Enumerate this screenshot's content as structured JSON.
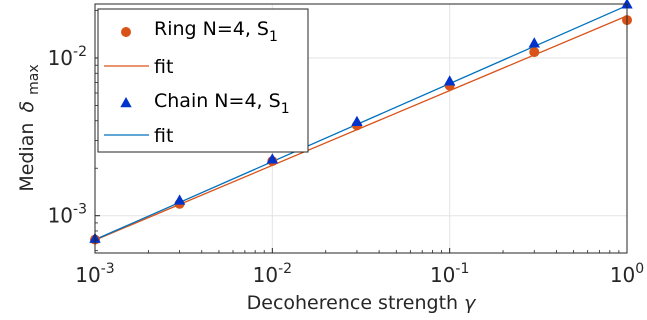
{
  "chart_data": {
    "type": "scatter",
    "xscale": "log",
    "yscale": "log",
    "xlim": [
      0.001,
      1
    ],
    "ylim": [
      0.00058,
      0.022
    ],
    "grid": true,
    "legend_position": "top-left",
    "xlabel": "Decoherence strength",
    "xlabel_symbol": "γ",
    "ylabel": "Median",
    "ylabel_symbol": "δ",
    "ylabel_subscript": "max",
    "x_ticks": [
      {
        "value": 0.001,
        "base": "10",
        "exp": "-3"
      },
      {
        "value": 0.01,
        "base": "10",
        "exp": "-2"
      },
      {
        "value": 0.1,
        "base": "10",
        "exp": "-1"
      },
      {
        "value": 1,
        "base": "10",
        "exp": "0"
      }
    ],
    "y_ticks": [
      {
        "value": 0.001,
        "base": "10",
        "exp": "-3"
      },
      {
        "value": 0.01,
        "base": "10",
        "exp": "-2"
      }
    ],
    "series": [
      {
        "name": "Ring N=4, S",
        "name_subscript": "1",
        "marker": "circle",
        "color": "#D95319",
        "x": [
          0.001,
          0.003,
          0.01,
          0.03,
          0.1,
          0.3,
          1
        ],
        "y": [
          0.000705,
          0.00119,
          0.00222,
          0.00374,
          0.00668,
          0.0109,
          0.0174
        ]
      },
      {
        "name": "fit",
        "type": "line",
        "color": "#D95319",
        "x": [
          0.001,
          1
        ],
        "y": [
          0.0007,
          0.0185
        ]
      },
      {
        "name": "Chain N=4, S",
        "name_subscript": "1",
        "marker": "triangle",
        "color": "#0033CC",
        "x": [
          0.001,
          0.003,
          0.01,
          0.03,
          0.1,
          0.3,
          1
        ],
        "y": [
          0.000715,
          0.00125,
          0.00228,
          0.00394,
          0.00712,
          0.0124,
          0.0219
        ]
      },
      {
        "name": "fit",
        "type": "line",
        "color": "#0072BD",
        "x": [
          0.001,
          1
        ],
        "y": [
          0.000705,
          0.0215
        ]
      }
    ]
  }
}
